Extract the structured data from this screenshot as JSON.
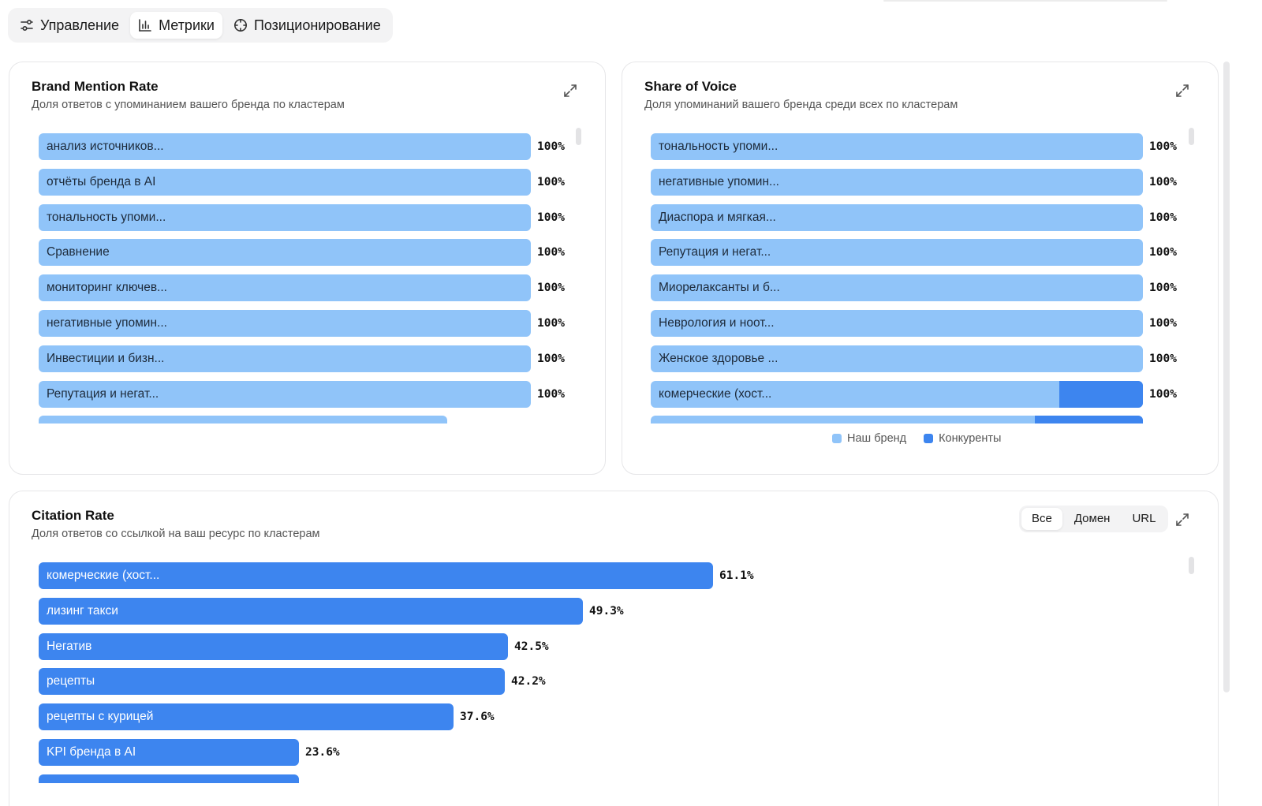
{
  "tabs": [
    {
      "label": "Управление",
      "icon": "sliders-icon",
      "active": false
    },
    {
      "label": "Метрики",
      "icon": "bar-chart-icon",
      "active": true
    },
    {
      "label": "Позиционирование",
      "icon": "crosshair-icon",
      "active": false
    }
  ],
  "colors": {
    "brand": "#90c4f9",
    "competitors": "#3d85ef"
  },
  "brand_mention": {
    "title": "Brand Mention Rate",
    "subtitle": "Доля ответов с упоминанием вашего бренда по кластерам"
  },
  "share_of_voice": {
    "title": "Share of Voice",
    "subtitle": "Доля упоминаний вашего бренда среди всех по кластерам",
    "legend_brand": "Наш бренд",
    "legend_competitors": "Конкуренты"
  },
  "citation_rate": {
    "title": "Citation Rate",
    "subtitle": "Доля ответов со ссылкой на ваш ресурс по кластерам",
    "filters": [
      {
        "label": "Все",
        "active": true
      },
      {
        "label": "Домен",
        "active": false
      },
      {
        "label": "URL",
        "active": false
      }
    ]
  },
  "chart_data": [
    {
      "type": "bar",
      "title": "Brand Mention Rate",
      "categories": [
        "анализ источников...",
        "отчёты бренда в AI",
        "тональность упоми...",
        "Сравнение",
        "мониторинг ключев...",
        "негативные упомин...",
        "Инвестиции и бизн...",
        "Репутация и негат..."
      ],
      "values": [
        100,
        100,
        100,
        100,
        100,
        100,
        100,
        100
      ],
      "value_labels": [
        "100%",
        "100%",
        "100%",
        "100%",
        "100%",
        "100%",
        "100%",
        "100%"
      ],
      "partial_next_value": 83,
      "xlim": [
        0,
        100
      ]
    },
    {
      "type": "bar",
      "title": "Share of Voice",
      "categories": [
        "тональность упоми...",
        "негативные упомин...",
        "Диаспора и мягкая...",
        "Репутация и негат...",
        "Миорелаксанты и б...",
        "Неврология и ноот...",
        "Женское здоровье ...",
        "комерческие (хост..."
      ],
      "series": [
        {
          "name": "Наш бренд",
          "values": [
            100,
            100,
            100,
            100,
            100,
            100,
            100,
            83
          ]
        },
        {
          "name": "Конкуренты",
          "values": [
            0,
            0,
            0,
            0,
            0,
            0,
            0,
            17
          ]
        }
      ],
      "value_labels": [
        "100%",
        "100%",
        "100%",
        "100%",
        "100%",
        "100%",
        "100%",
        "100%"
      ],
      "partial_next": {
        "brand": 78,
        "competitors": 22
      },
      "legend": "bottom-center",
      "xlim": [
        0,
        100
      ]
    },
    {
      "type": "bar",
      "title": "Citation Rate",
      "categories": [
        "комерческие (хост...",
        "лизинг такси",
        "Негатив",
        "рецепты",
        "рецепты с курицей",
        "KPI бренда в AI"
      ],
      "values": [
        61.1,
        49.3,
        42.5,
        42.2,
        37.6,
        23.6
      ],
      "value_labels": [
        "61.1%",
        "49.3%",
        "42.5%",
        "42.2%",
        "37.6%",
        "23.6%"
      ],
      "partial_next_value": 23.6,
      "xlim": [
        0,
        100
      ]
    }
  ]
}
